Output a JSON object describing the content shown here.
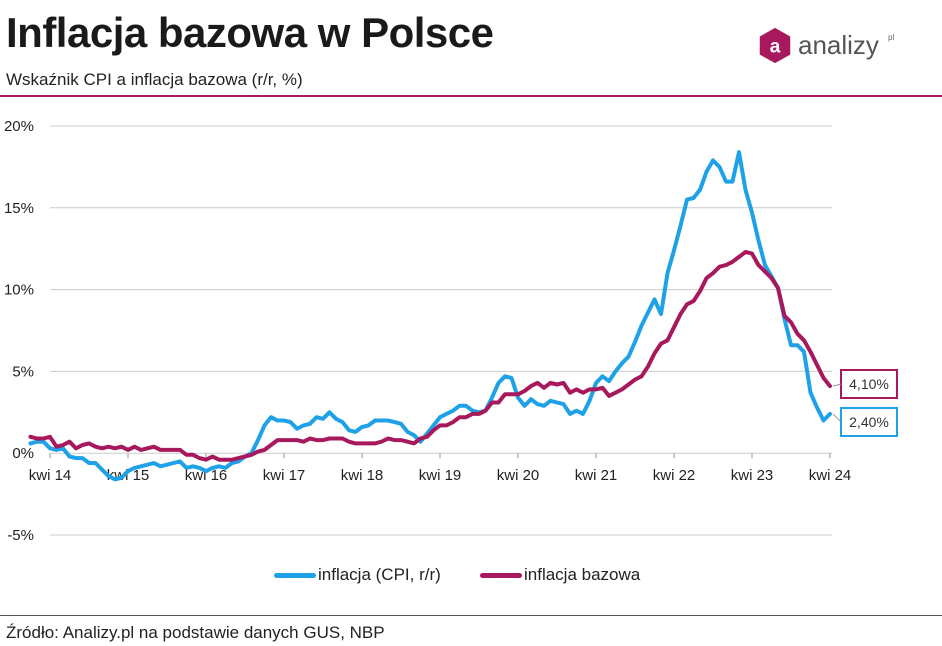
{
  "header": {
    "title": "Inflacja bazowa w Polsce",
    "subtitle": "Wskaźnik CPI a inflacja bazowa (r/r, %)"
  },
  "logo": {
    "text": "analizy",
    "suffix": "pl",
    "mark": "a",
    "color": "#a8185c"
  },
  "footer": {
    "source": "Źródło: Analizy.pl na podstawie danych GUS, NBP"
  },
  "colors": {
    "cpi": "#1ea1e6",
    "core": "#a8185c",
    "grid": "#cccccc"
  },
  "chart_data": {
    "type": "line",
    "title": "Inflacja bazowa w Polsce",
    "subtitle": "Wskaźnik CPI a inflacja bazowa (r/r, %)",
    "ylim": [
      -5,
      20
    ],
    "yticks": [
      -5,
      0,
      5,
      10,
      15,
      20
    ],
    "ytick_labels": [
      "-5%",
      "0%",
      "5%",
      "10%",
      "15%",
      "20%"
    ],
    "x_range": [
      2014.25,
      2024.25
    ],
    "xticks": [
      2014.25,
      2015.25,
      2016.25,
      2017.25,
      2018.25,
      2019.25,
      2020.25,
      2021.25,
      2022.25,
      2023.25,
      2024.25
    ],
    "xtick_labels": [
      "kwi 14",
      "kwi 15",
      "kwi 16",
      "kwi 17",
      "kwi 18",
      "kwi 19",
      "kwi 20",
      "kwi 21",
      "kwi 22",
      "kwi 23",
      "kwi 24"
    ],
    "grid": true,
    "legend_position": "bottom",
    "end_labels": [
      "4,10%",
      "2,40%"
    ],
    "series": [
      {
        "name": "inflacja (CPI, r/r)",
        "color": "#1ea1e6",
        "points": [
          [
            2014.0,
            0.6
          ],
          [
            2014.083,
            0.7
          ],
          [
            2014.167,
            0.7
          ],
          [
            2014.25,
            0.3
          ],
          [
            2014.333,
            0.2
          ],
          [
            2014.417,
            0.3
          ],
          [
            2014.5,
            -0.2
          ],
          [
            2014.583,
            -0.3
          ],
          [
            2014.667,
            -0.3
          ],
          [
            2014.75,
            -0.6
          ],
          [
            2014.833,
            -0.6
          ],
          [
            2014.917,
            -1.0
          ],
          [
            2015.0,
            -1.4
          ],
          [
            2015.083,
            -1.6
          ],
          [
            2015.167,
            -1.5
          ],
          [
            2015.25,
            -1.1
          ],
          [
            2015.333,
            -0.9
          ],
          [
            2015.417,
            -0.8
          ],
          [
            2015.5,
            -0.7
          ],
          [
            2015.583,
            -0.6
          ],
          [
            2015.667,
            -0.8
          ],
          [
            2015.75,
            -0.7
          ],
          [
            2015.833,
            -0.6
          ],
          [
            2015.917,
            -0.5
          ],
          [
            2016.0,
            -0.9
          ],
          [
            2016.083,
            -0.8
          ],
          [
            2016.167,
            -0.9
          ],
          [
            2016.25,
            -1.1
          ],
          [
            2016.333,
            -0.9
          ],
          [
            2016.417,
            -0.8
          ],
          [
            2016.5,
            -0.9
          ],
          [
            2016.583,
            -0.6
          ],
          [
            2016.667,
            -0.5
          ],
          [
            2016.75,
            -0.2
          ],
          [
            2016.833,
            0.0
          ],
          [
            2016.917,
            0.8
          ],
          [
            2017.0,
            1.7
          ],
          [
            2017.083,
            2.2
          ],
          [
            2017.167,
            2.0
          ],
          [
            2017.25,
            2.0
          ],
          [
            2017.333,
            1.9
          ],
          [
            2017.417,
            1.5
          ],
          [
            2017.5,
            1.7
          ],
          [
            2017.583,
            1.8
          ],
          [
            2017.667,
            2.2
          ],
          [
            2017.75,
            2.1
          ],
          [
            2017.833,
            2.5
          ],
          [
            2017.917,
            2.1
          ],
          [
            2018.0,
            1.9
          ],
          [
            2018.083,
            1.4
          ],
          [
            2018.167,
            1.3
          ],
          [
            2018.25,
            1.6
          ],
          [
            2018.333,
            1.7
          ],
          [
            2018.417,
            2.0
          ],
          [
            2018.5,
            2.0
          ],
          [
            2018.583,
            2.0
          ],
          [
            2018.667,
            1.9
          ],
          [
            2018.75,
            1.8
          ],
          [
            2018.833,
            1.3
          ],
          [
            2018.917,
            1.1
          ],
          [
            2019.0,
            0.7
          ],
          [
            2019.083,
            1.2
          ],
          [
            2019.167,
            1.7
          ],
          [
            2019.25,
            2.2
          ],
          [
            2019.333,
            2.4
          ],
          [
            2019.417,
            2.6
          ],
          [
            2019.5,
            2.9
          ],
          [
            2019.583,
            2.9
          ],
          [
            2019.667,
            2.6
          ],
          [
            2019.75,
            2.5
          ],
          [
            2019.833,
            2.6
          ],
          [
            2019.917,
            3.4
          ],
          [
            2020.0,
            4.3
          ],
          [
            2020.083,
            4.7
          ],
          [
            2020.167,
            4.6
          ],
          [
            2020.25,
            3.4
          ],
          [
            2020.333,
            2.9
          ],
          [
            2020.417,
            3.3
          ],
          [
            2020.5,
            3.0
          ],
          [
            2020.583,
            2.9
          ],
          [
            2020.667,
            3.2
          ],
          [
            2020.75,
            3.1
          ],
          [
            2020.833,
            3.0
          ],
          [
            2020.917,
            2.4
          ],
          [
            2021.0,
            2.6
          ],
          [
            2021.083,
            2.4
          ],
          [
            2021.167,
            3.2
          ],
          [
            2021.25,
            4.3
          ],
          [
            2021.333,
            4.7
          ],
          [
            2021.417,
            4.4
          ],
          [
            2021.5,
            5.0
          ],
          [
            2021.583,
            5.5
          ],
          [
            2021.667,
            5.9
          ],
          [
            2021.75,
            6.8
          ],
          [
            2021.833,
            7.8
          ],
          [
            2021.917,
            8.6
          ],
          [
            2022.0,
            9.4
          ],
          [
            2022.083,
            8.5
          ],
          [
            2022.167,
            11.0
          ],
          [
            2022.25,
            12.4
          ],
          [
            2022.333,
            13.9
          ],
          [
            2022.417,
            15.5
          ],
          [
            2022.5,
            15.6
          ],
          [
            2022.583,
            16.1
          ],
          [
            2022.667,
            17.2
          ],
          [
            2022.75,
            17.9
          ],
          [
            2022.833,
            17.5
          ],
          [
            2022.917,
            16.6
          ],
          [
            2023.0,
            16.6
          ],
          [
            2023.083,
            18.4
          ],
          [
            2023.167,
            16.1
          ],
          [
            2023.25,
            14.7
          ],
          [
            2023.333,
            13.0
          ],
          [
            2023.417,
            11.5
          ],
          [
            2023.5,
            10.8
          ],
          [
            2023.583,
            10.1
          ],
          [
            2023.667,
            8.2
          ],
          [
            2023.75,
            6.6
          ],
          [
            2023.833,
            6.6
          ],
          [
            2023.917,
            6.2
          ],
          [
            2024.0,
            3.7
          ],
          [
            2024.083,
            2.8
          ],
          [
            2024.167,
            2.0
          ],
          [
            2024.25,
            2.4
          ]
        ]
      },
      {
        "name": "inflacja bazowa",
        "color": "#a8185c",
        "points": [
          [
            2014.0,
            1.0
          ],
          [
            2014.083,
            0.9
          ],
          [
            2014.167,
            0.9
          ],
          [
            2014.25,
            1.0
          ],
          [
            2014.333,
            0.4
          ],
          [
            2014.417,
            0.5
          ],
          [
            2014.5,
            0.7
          ],
          [
            2014.583,
            0.3
          ],
          [
            2014.667,
            0.5
          ],
          [
            2014.75,
            0.6
          ],
          [
            2014.833,
            0.4
          ],
          [
            2014.917,
            0.3
          ],
          [
            2015.0,
            0.4
          ],
          [
            2015.083,
            0.3
          ],
          [
            2015.167,
            0.4
          ],
          [
            2015.25,
            0.2
          ],
          [
            2015.333,
            0.4
          ],
          [
            2015.417,
            0.2
          ],
          [
            2015.5,
            0.3
          ],
          [
            2015.583,
            0.4
          ],
          [
            2015.667,
            0.2
          ],
          [
            2015.75,
            0.2
          ],
          [
            2015.833,
            0.2
          ],
          [
            2015.917,
            0.2
          ],
          [
            2016.0,
            -0.1
          ],
          [
            2016.083,
            -0.1
          ],
          [
            2016.167,
            -0.3
          ],
          [
            2016.25,
            -0.4
          ],
          [
            2016.333,
            -0.2
          ],
          [
            2016.417,
            -0.4
          ],
          [
            2016.5,
            -0.4
          ],
          [
            2016.583,
            -0.4
          ],
          [
            2016.667,
            -0.3
          ],
          [
            2016.75,
            -0.2
          ],
          [
            2016.833,
            -0.1
          ],
          [
            2016.917,
            0.1
          ],
          [
            2017.0,
            0.2
          ],
          [
            2017.083,
            0.5
          ],
          [
            2017.167,
            0.8
          ],
          [
            2017.25,
            0.8
          ],
          [
            2017.333,
            0.8
          ],
          [
            2017.417,
            0.8
          ],
          [
            2017.5,
            0.7
          ],
          [
            2017.583,
            0.9
          ],
          [
            2017.667,
            0.8
          ],
          [
            2017.75,
            0.8
          ],
          [
            2017.833,
            0.9
          ],
          [
            2017.917,
            0.9
          ],
          [
            2018.0,
            0.9
          ],
          [
            2018.083,
            0.7
          ],
          [
            2018.167,
            0.6
          ],
          [
            2018.25,
            0.6
          ],
          [
            2018.333,
            0.6
          ],
          [
            2018.417,
            0.6
          ],
          [
            2018.5,
            0.7
          ],
          [
            2018.583,
            0.9
          ],
          [
            2018.667,
            0.8
          ],
          [
            2018.75,
            0.8
          ],
          [
            2018.833,
            0.7
          ],
          [
            2018.917,
            0.6
          ],
          [
            2019.0,
            0.9
          ],
          [
            2019.083,
            1.0
          ],
          [
            2019.167,
            1.4
          ],
          [
            2019.25,
            1.7
          ],
          [
            2019.333,
            1.7
          ],
          [
            2019.417,
            1.9
          ],
          [
            2019.5,
            2.2
          ],
          [
            2019.583,
            2.2
          ],
          [
            2019.667,
            2.4
          ],
          [
            2019.75,
            2.4
          ],
          [
            2019.833,
            2.6
          ],
          [
            2019.917,
            3.1
          ],
          [
            2020.0,
            3.1
          ],
          [
            2020.083,
            3.6
          ],
          [
            2020.167,
            3.6
          ],
          [
            2020.25,
            3.6
          ],
          [
            2020.333,
            3.8
          ],
          [
            2020.417,
            4.1
          ],
          [
            2020.5,
            4.3
          ],
          [
            2020.583,
            4.0
          ],
          [
            2020.667,
            4.3
          ],
          [
            2020.75,
            4.2
          ],
          [
            2020.833,
            4.3
          ],
          [
            2020.917,
            3.7
          ],
          [
            2021.0,
            3.9
          ],
          [
            2021.083,
            3.7
          ],
          [
            2021.167,
            3.9
          ],
          [
            2021.25,
            3.9
          ],
          [
            2021.333,
            4.0
          ],
          [
            2021.417,
            3.5
          ],
          [
            2021.5,
            3.7
          ],
          [
            2021.583,
            3.9
          ],
          [
            2021.667,
            4.2
          ],
          [
            2021.75,
            4.5
          ],
          [
            2021.833,
            4.7
          ],
          [
            2021.917,
            5.3
          ],
          [
            2022.0,
            6.1
          ],
          [
            2022.083,
            6.7
          ],
          [
            2022.167,
            6.9
          ],
          [
            2022.25,
            7.7
          ],
          [
            2022.333,
            8.5
          ],
          [
            2022.417,
            9.1
          ],
          [
            2022.5,
            9.3
          ],
          [
            2022.583,
            9.9
          ],
          [
            2022.667,
            10.7
          ],
          [
            2022.75,
            11.0
          ],
          [
            2022.833,
            11.4
          ],
          [
            2022.917,
            11.5
          ],
          [
            2023.0,
            11.7
          ],
          [
            2023.083,
            12.0
          ],
          [
            2023.167,
            12.3
          ],
          [
            2023.25,
            12.2
          ],
          [
            2023.333,
            11.5
          ],
          [
            2023.417,
            11.1
          ],
          [
            2023.5,
            10.7
          ],
          [
            2023.583,
            10.1
          ],
          [
            2023.667,
            8.4
          ],
          [
            2023.75,
            8.0
          ],
          [
            2023.833,
            7.3
          ],
          [
            2023.917,
            6.9
          ],
          [
            2024.0,
            6.2
          ],
          [
            2024.083,
            5.4
          ],
          [
            2024.167,
            4.6
          ],
          [
            2024.25,
            4.1
          ]
        ]
      }
    ]
  },
  "legend": {
    "cpi_label": "inflacja (CPI, r/r)",
    "core_label": "inflacja bazowa"
  }
}
